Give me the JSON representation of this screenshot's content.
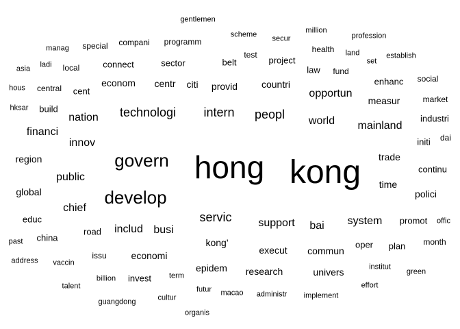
{
  "words": [
    {
      "text": "hong",
      "weight": 9
    },
    {
      "text": "kong",
      "weight": 9
    },
    {
      "text": "govern",
      "weight": 7
    },
    {
      "text": "develop",
      "weight": 7
    },
    {
      "text": "technologi",
      "weight": 6
    },
    {
      "text": "intern",
      "weight": 6
    },
    {
      "text": "peopl",
      "weight": 6
    },
    {
      "text": "servic",
      "weight": 6
    },
    {
      "text": "world",
      "weight": 5
    },
    {
      "text": "mainland",
      "weight": 5
    },
    {
      "text": "nation",
      "weight": 5
    },
    {
      "text": "financi",
      "weight": 5
    },
    {
      "text": "innov",
      "weight": 5
    },
    {
      "text": "public",
      "weight": 5
    },
    {
      "text": "chief",
      "weight": 5
    },
    {
      "text": "includ",
      "weight": 5
    },
    {
      "text": "busi",
      "weight": 5
    },
    {
      "text": "support",
      "weight": 5
    },
    {
      "text": "bai",
      "weight": 5
    },
    {
      "text": "system",
      "weight": 5
    },
    {
      "text": "opportun",
      "weight": 5
    },
    {
      "text": "trade",
      "weight": 5
    },
    {
      "text": "time",
      "weight": 5
    },
    {
      "text": "execut",
      "weight": 5
    },
    {
      "text": "kong'",
      "weight": 5
    },
    {
      "text": "econom",
      "weight": 4
    },
    {
      "text": "centr",
      "weight": 4
    },
    {
      "text": "citi",
      "weight": 4
    },
    {
      "text": "provid",
      "weight": 4
    },
    {
      "text": "countri",
      "weight": 4
    },
    {
      "text": "measur",
      "weight": 4
    },
    {
      "text": "region",
      "weight": 4
    },
    {
      "text": "global",
      "weight": 4
    },
    {
      "text": "economi",
      "weight": 4
    },
    {
      "text": "commun",
      "weight": 4
    },
    {
      "text": "research",
      "weight": 4
    },
    {
      "text": "epidem",
      "weight": 4
    },
    {
      "text": "univers",
      "weight": 4
    },
    {
      "text": "polici",
      "weight": 4
    },
    {
      "text": "industri",
      "weight": 4
    },
    {
      "text": "continu",
      "weight": 4
    },
    {
      "text": "initi",
      "weight": 4
    },
    {
      "text": "road",
      "weight": 4
    },
    {
      "text": "connect",
      "weight": 3
    },
    {
      "text": "sector",
      "weight": 3
    },
    {
      "text": "belt",
      "weight": 3
    },
    {
      "text": "project",
      "weight": 3
    },
    {
      "text": "law",
      "weight": 3
    },
    {
      "text": "enhanc",
      "weight": 3
    },
    {
      "text": "build",
      "weight": 3
    },
    {
      "text": "cent",
      "weight": 3
    },
    {
      "text": "china",
      "weight": 3
    },
    {
      "text": "educ",
      "weight": 3
    },
    {
      "text": "oper",
      "weight": 3
    },
    {
      "text": "plan",
      "weight": 3
    },
    {
      "text": "promot",
      "weight": 3
    },
    {
      "text": "invest",
      "weight": 3
    },
    {
      "text": "issu",
      "weight": 3
    },
    {
      "text": "test",
      "weight": 3
    },
    {
      "text": "health",
      "weight": 3
    },
    {
      "text": "fund",
      "weight": 3
    },
    {
      "text": "central",
      "weight": 3
    },
    {
      "text": "local",
      "weight": 3
    },
    {
      "text": "special",
      "weight": 3
    },
    {
      "text": "compani",
      "weight": 3
    },
    {
      "text": "programm",
      "weight": 3
    },
    {
      "text": "market",
      "weight": 3
    },
    {
      "text": "social",
      "weight": 3
    },
    {
      "text": "month",
      "weight": 3
    },
    {
      "text": "dai",
      "weight": 3
    },
    {
      "text": "gentlemen",
      "weight": 2
    },
    {
      "text": "scheme",
      "weight": 2
    },
    {
      "text": "secur",
      "weight": 2
    },
    {
      "text": "million",
      "weight": 2
    },
    {
      "text": "profession",
      "weight": 2
    },
    {
      "text": "manag",
      "weight": 2
    },
    {
      "text": "land",
      "weight": 2
    },
    {
      "text": "establish",
      "weight": 2
    },
    {
      "text": "set",
      "weight": 2
    },
    {
      "text": "ladi",
      "weight": 2
    },
    {
      "text": "asia",
      "weight": 2
    },
    {
      "text": "hous",
      "weight": 2
    },
    {
      "text": "hksar",
      "weight": 2
    },
    {
      "text": "offic",
      "weight": 2
    },
    {
      "text": "past",
      "weight": 2
    },
    {
      "text": "address",
      "weight": 2
    },
    {
      "text": "vaccin",
      "weight": 2
    },
    {
      "text": "institut",
      "weight": 2
    },
    {
      "text": "green",
      "weight": 2
    },
    {
      "text": "effort",
      "weight": 2
    },
    {
      "text": "talent",
      "weight": 2
    },
    {
      "text": "billion",
      "weight": 2
    },
    {
      "text": "term",
      "weight": 2
    },
    {
      "text": "futur",
      "weight": 2
    },
    {
      "text": "macao",
      "weight": 2
    },
    {
      "text": "administr",
      "weight": 2
    },
    {
      "text": "implement",
      "weight": 2
    },
    {
      "text": "guangdong",
      "weight": 2
    },
    {
      "text": "cultur",
      "weight": 2
    },
    {
      "text": "organis",
      "weight": 2
    }
  ]
}
